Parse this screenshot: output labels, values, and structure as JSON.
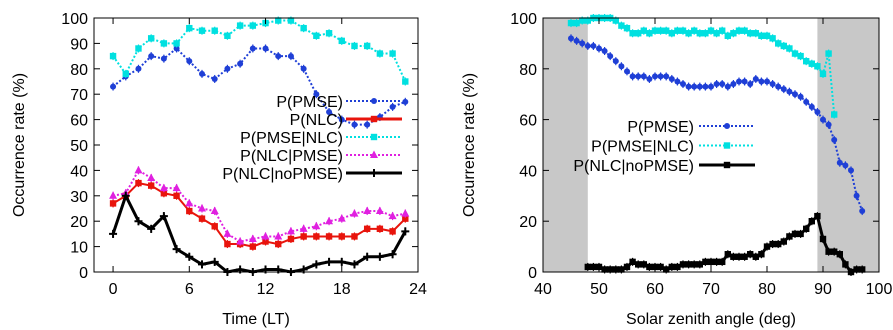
{
  "chart_data": [
    {
      "type": "line",
      "xlabel": "Time (LT)",
      "ylabel": "Occurrence rate (%)",
      "xlim": [
        -1.5,
        24
      ],
      "ylim": [
        0,
        100
      ],
      "xticks": [
        0,
        6,
        12,
        18,
        24
      ],
      "xtick_labels": [
        "0",
        "6",
        "12",
        "18",
        "24"
      ],
      "yticks": [
        0,
        10,
        20,
        30,
        40,
        50,
        60,
        70,
        80,
        90,
        100
      ],
      "ytick_labels": [
        "0",
        "10",
        "20",
        "30",
        "40",
        "50",
        "60",
        "70",
        "80",
        "90",
        "100"
      ],
      "grid": false,
      "legend_position": "right",
      "x": [
        0,
        1,
        2,
        3,
        4,
        5,
        6,
        7,
        8,
        9,
        10,
        11,
        12,
        13,
        14,
        15,
        16,
        17,
        18,
        19,
        20,
        21,
        22,
        23
      ],
      "series": [
        {
          "name": "P(PMSE)",
          "color": "#1f3fd6",
          "style": "dotted",
          "marker": "circle",
          "values": [
            73,
            77,
            80,
            85,
            84,
            88,
            83,
            78,
            76,
            80,
            82,
            88,
            88,
            85,
            85,
            80,
            70,
            63,
            60,
            58,
            58,
            61,
            65,
            67
          ]
        },
        {
          "name": "P(NLC)",
          "color": "#e8140c",
          "style": "solid",
          "marker": "square",
          "values": [
            27,
            30,
            35,
            34,
            31,
            30,
            24,
            21,
            18,
            11,
            11,
            10,
            12,
            11,
            13,
            14,
            14,
            14,
            14,
            14,
            17,
            17,
            16,
            21
          ]
        },
        {
          "name": "P(PMSE|NLC)",
          "color": "#00e0e0",
          "style": "dotted",
          "marker": "square",
          "values": [
            85,
            78,
            88,
            92,
            90,
            90,
            96,
            95,
            95,
            93,
            97,
            97,
            98,
            99,
            99,
            96,
            93,
            94,
            91,
            89,
            89,
            86,
            86,
            75
          ]
        },
        {
          "name": "P(NLC|PMSE)",
          "color": "#e020e0",
          "style": "dotted",
          "marker": "triangle",
          "values": [
            30,
            31,
            40,
            37,
            33,
            33,
            27,
            25,
            24,
            15,
            12,
            13,
            14,
            14,
            16,
            17,
            18,
            20,
            21,
            23,
            24,
            24,
            22,
            23
          ]
        },
        {
          "name": "P(NLC|noPMSE)",
          "color": "#000000",
          "style": "solid",
          "marker": "plus",
          "values": [
            15,
            30,
            20,
            17,
            22,
            9,
            6,
            3,
            4,
            0,
            1,
            0,
            1,
            1,
            0,
            1,
            3,
            4,
            4,
            3,
            6,
            6,
            7,
            16
          ]
        }
      ]
    },
    {
      "type": "line",
      "xlabel": "Solar zenith angle (deg)",
      "ylabel": "Occurrence rate (%)",
      "xlim": [
        40,
        100
      ],
      "ylim": [
        0,
        100
      ],
      "xticks": [
        40,
        50,
        60,
        70,
        80,
        90,
        100
      ],
      "xtick_labels": [
        "40",
        "50",
        "60",
        "70",
        "80",
        "90",
        "100"
      ],
      "yticks": [
        0,
        20,
        40,
        60,
        80,
        100
      ],
      "ytick_labels": [
        "0",
        "20",
        "40",
        "60",
        "80",
        "100"
      ],
      "grid": false,
      "legend_position": "center-right",
      "shaded_ranges": [
        [
          40,
          48
        ],
        [
          89,
          100
        ]
      ],
      "series": [
        {
          "name": "P(PMSE)",
          "color": "#1f3fd6",
          "style": "dotted",
          "marker": "circle",
          "x": [
            45,
            46,
            47,
            48,
            49,
            50,
            51,
            52,
            53,
            54,
            55,
            56,
            57,
            58,
            59,
            60,
            61,
            62,
            63,
            64,
            65,
            66,
            67,
            68,
            69,
            70,
            71,
            72,
            73,
            74,
            75,
            76,
            77,
            78,
            79,
            80,
            81,
            82,
            83,
            84,
            85,
            86,
            87,
            88,
            89,
            90,
            91,
            92,
            93,
            94,
            95,
            96,
            97
          ],
          "values": [
            92,
            91,
            90,
            89,
            89,
            88,
            87,
            85,
            83,
            81,
            79,
            77,
            77,
            77,
            76,
            77,
            77,
            77,
            76,
            75,
            74,
            73,
            73,
            73,
            73,
            73,
            74,
            74,
            73,
            74,
            75,
            75,
            74,
            76,
            75,
            75,
            74,
            73,
            72,
            71,
            70,
            69,
            67,
            65,
            63,
            60,
            58,
            52,
            43,
            42,
            40,
            30,
            24
          ]
        },
        {
          "name": "P(PMSE|NLC)",
          "color": "#00e0e0",
          "style": "dotted",
          "marker": "square",
          "x": [
            45,
            46,
            47,
            48,
            49,
            50,
            51,
            52,
            53,
            54,
            55,
            56,
            57,
            58,
            59,
            60,
            61,
            62,
            63,
            64,
            65,
            66,
            67,
            68,
            69,
            70,
            71,
            72,
            73,
            74,
            75,
            76,
            77,
            78,
            79,
            80,
            81,
            82,
            83,
            84,
            85,
            86,
            87,
            88,
            89,
            90,
            91,
            92
          ],
          "values": [
            98,
            98,
            99,
            99,
            100,
            100,
            100,
            100,
            99,
            97,
            96,
            94,
            94,
            95,
            94,
            95,
            95,
            95,
            94,
            95,
            95,
            94,
            95,
            94,
            94,
            95,
            94,
            95,
            93,
            94,
            95,
            95,
            94,
            94,
            93,
            93,
            92,
            90,
            89,
            88,
            86,
            85,
            83,
            82,
            81,
            78,
            86,
            62
          ]
        },
        {
          "name": "P(NLC|noPMSE)",
          "color": "#000000",
          "style": "solid",
          "marker": "square",
          "x": [
            48,
            49,
            50,
            51,
            52,
            53,
            54,
            55,
            56,
            57,
            58,
            59,
            60,
            61,
            62,
            63,
            64,
            65,
            66,
            67,
            68,
            69,
            70,
            71,
            72,
            73,
            74,
            75,
            76,
            77,
            78,
            79,
            80,
            81,
            82,
            83,
            84,
            85,
            86,
            87,
            88,
            89,
            90,
            91,
            92,
            93,
            94,
            95,
            96,
            97
          ],
          "values": [
            2,
            2,
            2,
            1,
            1,
            1,
            1,
            2,
            4,
            3,
            3,
            2,
            2,
            2,
            1,
            2,
            2,
            3,
            3,
            3,
            3,
            4,
            4,
            4,
            4,
            7,
            6,
            6,
            6,
            7,
            6,
            7,
            10,
            11,
            11,
            12,
            14,
            15,
            15,
            17,
            20,
            22,
            13,
            8,
            8,
            7,
            3,
            0,
            1,
            1
          ]
        }
      ]
    }
  ]
}
